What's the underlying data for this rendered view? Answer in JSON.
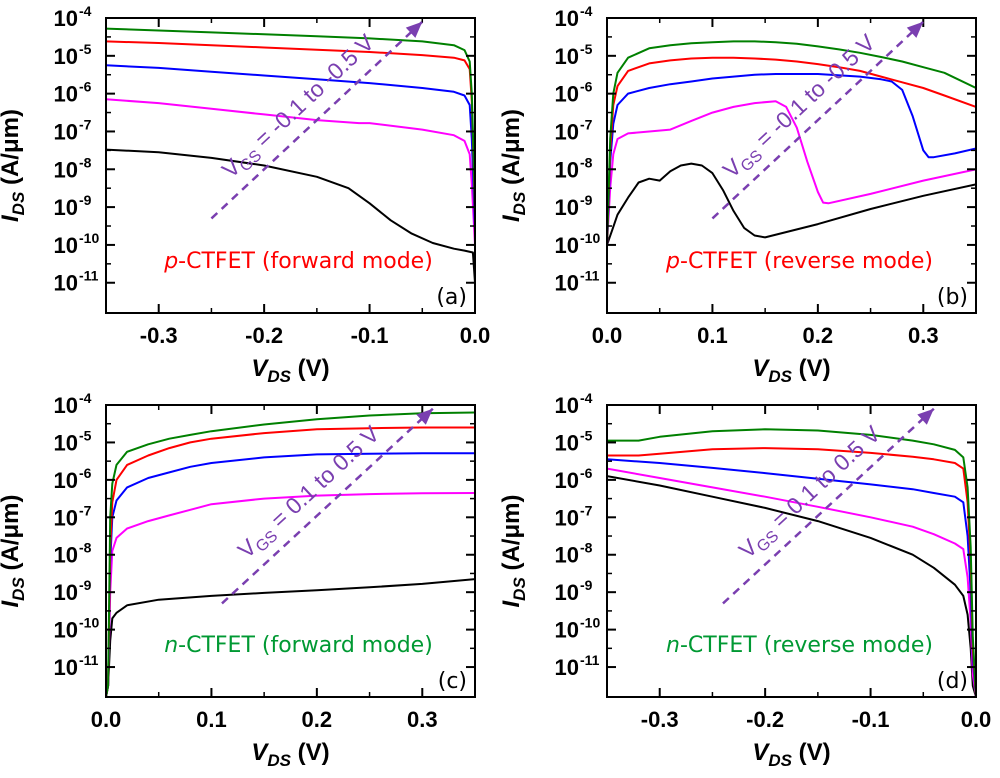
{
  "colors": {
    "black": "#000000",
    "magenta": "#ff00ff",
    "blue": "#0000ff",
    "red": "#ff0000",
    "green": "#008000",
    "arrow": "#7a3fb0",
    "note_red": "#ff0000",
    "note_green": "#009933"
  },
  "chart_data": [
    {
      "type": "line",
      "panel_label": "(a)",
      "note": {
        "italic": "p",
        "text": "-CTFET (forward mode)",
        "color": "#ff0000"
      },
      "sweep": {
        "base": "V",
        "sub": "GS",
        "text": " = -0.1 to -0.5 V"
      },
      "xlabel": {
        "base": "V",
        "sub": "DS",
        "unit": " (V)"
      },
      "ylabel": {
        "base": "I",
        "sub": "DS",
        "unit": " (A/μm)"
      },
      "xlim": [
        -0.35,
        0.0
      ],
      "yscale": "log",
      "ylim_exp": [
        -11.8,
        -4
      ],
      "xticks": [
        -0.3,
        -0.2,
        -0.1,
        0.0
      ],
      "xtick_labels": [
        "-0.3",
        "-0.2",
        "-0.1",
        "0.0"
      ],
      "yticks_exp": [
        -11,
        -10,
        -9,
        -8,
        -7,
        -6,
        -5,
        -4
      ],
      "ytick_labels": [
        "10",
        "10",
        "10",
        "10",
        "10",
        "10",
        "10",
        "10"
      ],
      "ytick_exps": [
        "-11",
        "-10",
        "-9",
        "-8",
        "-7",
        "-6",
        "-5",
        "-4"
      ],
      "arrow": {
        "from": [
          -0.25,
          -9.3
        ],
        "to": [
          -0.05,
          -4.1
        ]
      },
      "series": [
        {
          "color": "#000000",
          "x": [
            -0.35,
            -0.3,
            -0.25,
            -0.2,
            -0.15,
            -0.12,
            -0.1,
            -0.08,
            -0.06,
            -0.04,
            -0.02,
            -0.01,
            -0.002,
            0.0
          ],
          "log_y": [
            -7.48,
            -7.55,
            -7.7,
            -7.9,
            -8.2,
            -8.5,
            -8.9,
            -9.35,
            -9.7,
            -9.95,
            -10.1,
            -10.15,
            -10.2,
            -11.0
          ]
        },
        {
          "color": "#ff00ff",
          "x": [
            -0.35,
            -0.3,
            -0.25,
            -0.2,
            -0.15,
            -0.11,
            -0.1,
            -0.05,
            -0.02,
            -0.01,
            -0.005,
            -0.003,
            0.0
          ],
          "log_y": [
            -6.15,
            -6.25,
            -6.4,
            -6.55,
            -6.7,
            -6.78,
            -6.78,
            -6.95,
            -7.1,
            -7.25,
            -7.6,
            -8.4,
            -10.0
          ]
        },
        {
          "color": "#0000ff",
          "x": [
            -0.35,
            -0.3,
            -0.25,
            -0.2,
            -0.15,
            -0.1,
            -0.05,
            -0.02,
            -0.01,
            -0.005,
            -0.003,
            0.0
          ],
          "log_y": [
            -5.25,
            -5.32,
            -5.42,
            -5.52,
            -5.62,
            -5.72,
            -5.85,
            -5.95,
            -6.05,
            -6.3,
            -7.2,
            -9.6
          ]
        },
        {
          "color": "#ff0000",
          "x": [
            -0.35,
            -0.3,
            -0.25,
            -0.2,
            -0.15,
            -0.1,
            -0.05,
            -0.02,
            -0.01,
            -0.005,
            -0.003,
            0.0
          ],
          "log_y": [
            -4.62,
            -4.66,
            -4.72,
            -4.78,
            -4.84,
            -4.9,
            -4.98,
            -5.05,
            -5.12,
            -5.35,
            -6.2,
            -9.2
          ]
        },
        {
          "color": "#008000",
          "x": [
            -0.35,
            -0.3,
            -0.25,
            -0.2,
            -0.15,
            -0.1,
            -0.05,
            -0.02,
            -0.01,
            -0.005,
            -0.003,
            0.0
          ],
          "log_y": [
            -4.28,
            -4.33,
            -4.38,
            -4.43,
            -4.48,
            -4.54,
            -4.62,
            -4.72,
            -4.85,
            -5.15,
            -6.0,
            -9.0
          ]
        }
      ]
    },
    {
      "type": "line",
      "panel_label": "(b)",
      "note": {
        "italic": "p",
        "text": "-CTFET (reverse mode)",
        "color": "#ff0000"
      },
      "sweep": {
        "base": "V",
        "sub": "GS",
        "text": " = -0.1 to -0.5 V"
      },
      "xlabel": {
        "base": "V",
        "sub": "DS",
        "unit": " (V)"
      },
      "ylabel": {
        "base": "I",
        "sub": "DS",
        "unit": " (A/μm)"
      },
      "xlim": [
        0.0,
        0.35
      ],
      "yscale": "log",
      "ylim_exp": [
        -11.8,
        -4
      ],
      "xticks": [
        0.0,
        0.1,
        0.2,
        0.3
      ],
      "xtick_labels": [
        "0.0",
        "0.1",
        "0.2",
        "0.3"
      ],
      "yticks_exp": [
        -11,
        -10,
        -9,
        -8,
        -7,
        -6,
        -5,
        -4
      ],
      "ytick_labels": [
        "10",
        "10",
        "10",
        "10",
        "10",
        "10",
        "10",
        "10"
      ],
      "ytick_exps": [
        "-11",
        "-10",
        "-9",
        "-8",
        "-7",
        "-6",
        "-5",
        "-4"
      ],
      "arrow": {
        "from": [
          0.1,
          -9.3
        ],
        "to": [
          0.3,
          -4.1
        ]
      },
      "series": [
        {
          "color": "#000000",
          "x": [
            0.0,
            0.005,
            0.01,
            0.02,
            0.03,
            0.04,
            0.05,
            0.06,
            0.07,
            0.08,
            0.09,
            0.1,
            0.11,
            0.12,
            0.13,
            0.14,
            0.15,
            0.2,
            0.25,
            0.3,
            0.35
          ],
          "log_y": [
            -10.0,
            -9.6,
            -9.2,
            -8.75,
            -8.35,
            -8.25,
            -8.3,
            -8.05,
            -7.9,
            -7.85,
            -7.9,
            -8.1,
            -8.55,
            -9.1,
            -9.55,
            -9.75,
            -9.8,
            -9.45,
            -9.05,
            -8.7,
            -8.4
          ]
        },
        {
          "color": "#ff00ff",
          "x": [
            0.0,
            0.003,
            0.006,
            0.01,
            0.02,
            0.04,
            0.06,
            0.08,
            0.1,
            0.12,
            0.14,
            0.16,
            0.17,
            0.18,
            0.19,
            0.2,
            0.205,
            0.21,
            0.25,
            0.3,
            0.35
          ],
          "log_y": [
            -10.0,
            -8.5,
            -7.6,
            -7.2,
            -7.05,
            -7.0,
            -6.95,
            -6.72,
            -6.5,
            -6.35,
            -6.25,
            -6.2,
            -6.35,
            -6.9,
            -7.8,
            -8.6,
            -8.88,
            -8.9,
            -8.65,
            -8.3,
            -8.0
          ]
        },
        {
          "color": "#0000ff",
          "x": [
            0.0,
            0.003,
            0.006,
            0.01,
            0.02,
            0.04,
            0.06,
            0.08,
            0.1,
            0.12,
            0.14,
            0.16,
            0.2,
            0.24,
            0.26,
            0.27,
            0.28,
            0.29,
            0.3,
            0.305,
            0.31,
            0.33,
            0.35
          ],
          "log_y": [
            -10.0,
            -7.8,
            -6.8,
            -6.3,
            -6.0,
            -5.85,
            -5.75,
            -5.68,
            -5.6,
            -5.55,
            -5.5,
            -5.48,
            -5.48,
            -5.55,
            -5.62,
            -5.68,
            -5.9,
            -6.6,
            -7.5,
            -7.68,
            -7.68,
            -7.58,
            -7.45
          ]
        },
        {
          "color": "#ff0000",
          "x": [
            0.0,
            0.003,
            0.006,
            0.01,
            0.02,
            0.04,
            0.06,
            0.08,
            0.1,
            0.12,
            0.14,
            0.16,
            0.18,
            0.2,
            0.22,
            0.24,
            0.26,
            0.28,
            0.3,
            0.32,
            0.35
          ],
          "log_y": [
            -10.0,
            -7.5,
            -6.3,
            -5.8,
            -5.4,
            -5.2,
            -5.12,
            -5.07,
            -5.05,
            -5.05,
            -5.07,
            -5.1,
            -5.15,
            -5.22,
            -5.3,
            -5.4,
            -5.55,
            -5.7,
            -5.85,
            -6.05,
            -6.35
          ]
        },
        {
          "color": "#008000",
          "x": [
            0.0,
            0.003,
            0.006,
            0.01,
            0.02,
            0.04,
            0.06,
            0.08,
            0.1,
            0.12,
            0.14,
            0.16,
            0.18,
            0.2,
            0.22,
            0.24,
            0.26,
            0.28,
            0.3,
            0.32,
            0.35
          ],
          "log_y": [
            -10.0,
            -7.2,
            -6.0,
            -5.45,
            -5.05,
            -4.8,
            -4.72,
            -4.67,
            -4.64,
            -4.62,
            -4.62,
            -4.64,
            -4.68,
            -4.75,
            -4.83,
            -4.92,
            -5.03,
            -5.15,
            -5.3,
            -5.45,
            -5.85
          ]
        }
      ]
    },
    {
      "type": "line",
      "panel_label": "(c)",
      "note": {
        "italic": "n",
        "text": "-CTFET (forward mode)",
        "color": "#009933"
      },
      "sweep": {
        "base": "V",
        "sub": "GS",
        "text": " = 0.1 to 0.5 V"
      },
      "xlabel": {
        "base": "V",
        "sub": "DS",
        "unit": " (V)"
      },
      "ylabel": {
        "base": "I",
        "sub": "DS",
        "unit": " (A/μm)"
      },
      "xlim": [
        0.0,
        0.35
      ],
      "yscale": "log",
      "ylim_exp": [
        -11.8,
        -4
      ],
      "xticks": [
        0.0,
        0.1,
        0.2,
        0.3
      ],
      "xtick_labels": [
        "0.0",
        "0.1",
        "0.2",
        "0.3"
      ],
      "yticks_exp": [
        -11,
        -10,
        -9,
        -8,
        -7,
        -6,
        -5,
        -4
      ],
      "ytick_labels": [
        "10",
        "10",
        "10",
        "10",
        "10",
        "10",
        "10",
        "10"
      ],
      "ytick_exps": [
        "-11",
        "-10",
        "-9",
        "-8",
        "-7",
        "-6",
        "-5",
        "-4"
      ],
      "arrow": {
        "from": [
          0.11,
          -9.3
        ],
        "to": [
          0.31,
          -4.1
        ]
      },
      "series": [
        {
          "color": "#000000",
          "x": [
            0.0,
            0.002,
            0.004,
            0.006,
            0.01,
            0.02,
            0.05,
            0.1,
            0.15,
            0.2,
            0.25,
            0.3,
            0.35
          ],
          "log_y": [
            -11.8,
            -11.5,
            -10.3,
            -9.7,
            -9.55,
            -9.35,
            -9.2,
            -9.1,
            -9.02,
            -8.95,
            -8.87,
            -8.78,
            -8.65
          ]
        },
        {
          "color": "#ff00ff",
          "x": [
            0.0,
            0.002,
            0.004,
            0.006,
            0.01,
            0.02,
            0.04,
            0.06,
            0.08,
            0.1,
            0.15,
            0.2,
            0.25,
            0.3,
            0.35
          ],
          "log_y": [
            -11.8,
            -11.5,
            -9.0,
            -7.9,
            -7.55,
            -7.3,
            -7.1,
            -6.95,
            -6.8,
            -6.65,
            -6.5,
            -6.42,
            -6.38,
            -6.36,
            -6.35
          ]
        },
        {
          "color": "#0000ff",
          "x": [
            0.0,
            0.002,
            0.004,
            0.006,
            0.01,
            0.02,
            0.04,
            0.06,
            0.08,
            0.1,
            0.15,
            0.2,
            0.25,
            0.3,
            0.35
          ],
          "log_y": [
            -11.8,
            -11.5,
            -8.2,
            -7.0,
            -6.55,
            -6.2,
            -5.95,
            -5.8,
            -5.65,
            -5.55,
            -5.4,
            -5.32,
            -5.3,
            -5.29,
            -5.29
          ]
        },
        {
          "color": "#ff0000",
          "x": [
            0.0,
            0.002,
            0.004,
            0.006,
            0.01,
            0.02,
            0.04,
            0.06,
            0.08,
            0.1,
            0.15,
            0.2,
            0.25,
            0.3,
            0.35
          ],
          "log_y": [
            -11.8,
            -11.5,
            -7.8,
            -6.6,
            -6.0,
            -5.6,
            -5.35,
            -5.15,
            -5.0,
            -4.9,
            -4.75,
            -4.65,
            -4.62,
            -4.6,
            -4.6
          ]
        },
        {
          "color": "#008000",
          "x": [
            0.0,
            0.002,
            0.004,
            0.006,
            0.01,
            0.02,
            0.04,
            0.06,
            0.08,
            0.1,
            0.15,
            0.2,
            0.25,
            0.3,
            0.35
          ],
          "log_y": [
            -11.8,
            -11.5,
            -7.0,
            -6.1,
            -5.6,
            -5.25,
            -5.05,
            -4.9,
            -4.8,
            -4.7,
            -4.52,
            -4.38,
            -4.28,
            -4.22,
            -4.2
          ]
        }
      ]
    },
    {
      "type": "line",
      "panel_label": "(d)",
      "note": {
        "italic": "n",
        "text": "-CTFET (reverse mode)",
        "color": "#009933"
      },
      "sweep": {
        "base": "V",
        "sub": "GS",
        "text": " = 0.1 to 0.5 V"
      },
      "xlabel": {
        "base": "V",
        "sub": "DS",
        "unit": " (V)"
      },
      "ylabel": {
        "base": "I",
        "sub": "DS",
        "unit": " (A/μm)"
      },
      "xlim": [
        -0.35,
        0.0
      ],
      "yscale": "log",
      "ylim_exp": [
        -11.8,
        -4
      ],
      "xticks": [
        -0.3,
        -0.2,
        -0.1,
        0.0
      ],
      "xtick_labels": [
        "-0.3",
        "-0.2",
        "-0.1",
        "0.0"
      ],
      "yticks_exp": [
        -11,
        -10,
        -9,
        -8,
        -7,
        -6,
        -5,
        -4
      ],
      "ytick_labels": [
        "10",
        "10",
        "10",
        "10",
        "10",
        "10",
        "10",
        "10"
      ],
      "ytick_exps": [
        "-11",
        "-10",
        "-9",
        "-8",
        "-7",
        "-6",
        "-5",
        "-4"
      ],
      "arrow": {
        "from": [
          -0.24,
          -9.3
        ],
        "to": [
          -0.04,
          -4.1
        ]
      },
      "series": [
        {
          "color": "#000000",
          "x": [
            -0.35,
            -0.3,
            -0.25,
            -0.2,
            -0.15,
            -0.1,
            -0.06,
            -0.04,
            -0.02,
            -0.012,
            -0.008,
            -0.005,
            -0.003,
            0.0
          ],
          "log_y": [
            -5.9,
            -6.15,
            -6.45,
            -6.75,
            -7.1,
            -7.55,
            -8.0,
            -8.35,
            -8.8,
            -9.1,
            -9.6,
            -10.5,
            -11.5,
            -11.8
          ]
        },
        {
          "color": "#ff00ff",
          "x": [
            -0.35,
            -0.3,
            -0.25,
            -0.2,
            -0.15,
            -0.1,
            -0.06,
            -0.04,
            -0.02,
            -0.012,
            -0.008,
            -0.005,
            -0.003,
            0.0
          ],
          "log_y": [
            -5.7,
            -5.95,
            -6.2,
            -6.45,
            -6.72,
            -7.0,
            -7.25,
            -7.45,
            -7.7,
            -7.85,
            -8.6,
            -9.8,
            -11.2,
            -11.8
          ]
        },
        {
          "color": "#0000ff",
          "x": [
            -0.35,
            -0.3,
            -0.25,
            -0.2,
            -0.15,
            -0.1,
            -0.06,
            -0.04,
            -0.02,
            -0.012,
            -0.008,
            -0.005,
            -0.003,
            0.0
          ],
          "log_y": [
            -5.45,
            -5.55,
            -5.68,
            -5.82,
            -5.97,
            -6.12,
            -6.25,
            -6.35,
            -6.45,
            -6.6,
            -7.5,
            -9.0,
            -10.8,
            -11.8
          ]
        },
        {
          "color": "#ff0000",
          "x": [
            -0.35,
            -0.32,
            -0.3,
            -0.25,
            -0.2,
            -0.15,
            -0.1,
            -0.06,
            -0.04,
            -0.02,
            -0.012,
            -0.008,
            -0.005,
            -0.003,
            0.0
          ],
          "log_y": [
            -5.35,
            -5.35,
            -5.3,
            -5.18,
            -5.15,
            -5.18,
            -5.28,
            -5.38,
            -5.45,
            -5.55,
            -5.7,
            -6.6,
            -8.2,
            -10.5,
            -11.8
          ]
        },
        {
          "color": "#008000",
          "x": [
            -0.35,
            -0.32,
            -0.3,
            -0.25,
            -0.2,
            -0.15,
            -0.1,
            -0.06,
            -0.04,
            -0.02,
            -0.012,
            -0.008,
            -0.005,
            -0.003,
            0.0
          ],
          "log_y": [
            -4.95,
            -4.95,
            -4.85,
            -4.7,
            -4.65,
            -4.68,
            -4.8,
            -4.95,
            -5.05,
            -5.2,
            -5.4,
            -6.2,
            -7.8,
            -10.2,
            -11.8
          ]
        }
      ]
    }
  ]
}
